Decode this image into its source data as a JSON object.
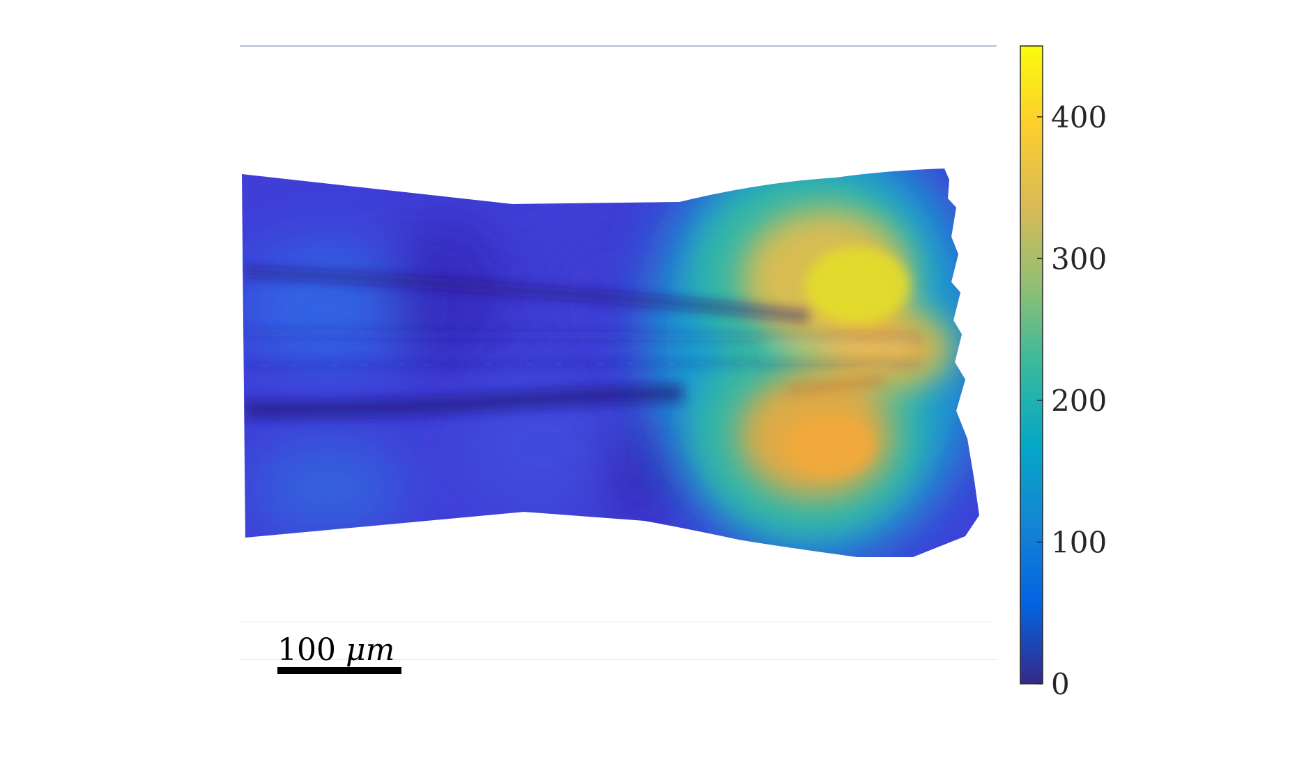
{
  "chart_data": {
    "type": "heatmap",
    "title": "",
    "xlabel": "",
    "ylabel": "",
    "colormap": "parula",
    "colorbar": {
      "orientation": "vertical",
      "placement": "right",
      "range": [
        0,
        450
      ],
      "ticks": [
        0,
        100,
        200,
        300,
        400
      ],
      "tick_labels": [
        "0",
        "100",
        "200",
        "300",
        "400"
      ]
    },
    "scale_bar": {
      "value": 100,
      "unit": "μm",
      "label_number": "100",
      "label_unit": "μm",
      "placement": "bottom-left"
    },
    "field": {
      "description_hint": "overlay on micrograph of a track; low values on the left, a bilobed hotspot on the right",
      "background_value": 40,
      "hotspots": [
        {
          "name": "upper-lobe",
          "peak": 380
        },
        {
          "name": "lower-lobe",
          "peak": 360
        },
        {
          "name": "tip",
          "peak": 400
        }
      ]
    },
    "colors": {
      "parula": [
        "#352a87",
        "#0363e1",
        "#1485d4",
        "#06a7c6",
        "#38b99e",
        "#92bf73",
        "#d9ba56",
        "#fcce2e",
        "#f9fb0e"
      ]
    }
  }
}
